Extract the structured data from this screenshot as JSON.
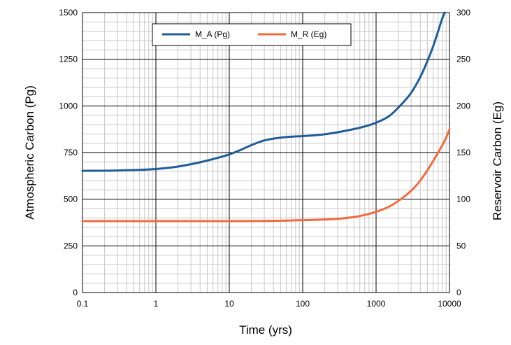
{
  "chart_data": {
    "type": "line",
    "title": "",
    "xlabel": "Time (yrs)",
    "ylabel": "Atmospheric  Carbon  (Pg)",
    "y2label": "Reservoir  Carbon  (Eg)",
    "x_scale": "log",
    "xlim": [
      0.1,
      10000
    ],
    "ylim": [
      0,
      1500
    ],
    "y2lim": [
      0,
      300
    ],
    "x_ticks": [
      "0.1",
      "1",
      "10",
      "100",
      "1000",
      "10000"
    ],
    "y_ticks": [
      "0",
      "250",
      "500",
      "750",
      "1000",
      "1250",
      "1500"
    ],
    "y2_ticks": [
      "0",
      "50",
      "100",
      "150",
      "200",
      "250",
      "300"
    ],
    "grid": true,
    "legend_position": "top",
    "series": [
      {
        "name": "M_A (Pg)",
        "axis": "left",
        "color": "#1f5d99",
        "x": [
          0.1,
          0.3,
          1,
          2,
          4,
          7,
          10,
          15,
          20,
          30,
          50,
          70,
          100,
          200,
          400,
          700,
          1000,
          1500,
          2000,
          3000,
          4000,
          5000,
          6000,
          7000,
          8000,
          8600
        ],
        "y": [
          652,
          654,
          662,
          675,
          698,
          722,
          740,
          768,
          790,
          815,
          830,
          835,
          838,
          848,
          868,
          890,
          910,
          945,
          990,
          1070,
          1155,
          1240,
          1320,
          1400,
          1470,
          1500
        ]
      },
      {
        "name": "M_R (Eg)",
        "axis": "right",
        "color": "#f26b3d",
        "x": [
          0.1,
          1,
          10,
          30,
          100,
          300,
          600,
          1000,
          1500,
          2000,
          3000,
          4000,
          5000,
          6000,
          7000,
          8000,
          9000,
          10000
        ],
        "y": [
          76.5,
          76.5,
          76.5,
          76.7,
          77.5,
          79,
          82,
          86.5,
          92,
          98,
          109,
          120,
          131,
          141,
          150,
          158,
          166,
          175
        ]
      }
    ]
  }
}
